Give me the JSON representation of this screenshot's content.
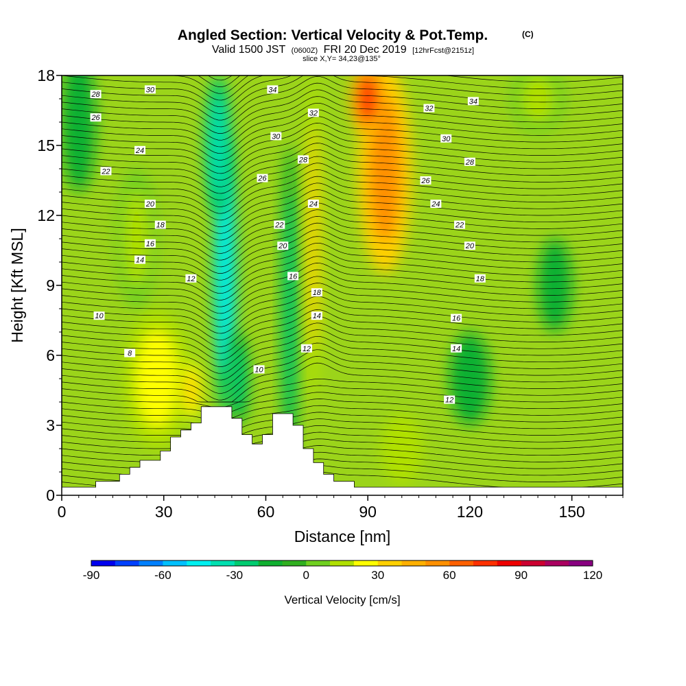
{
  "chart_data": {
    "type": "heatmap",
    "title": "Angled Section: Vertical Velocity & Pot.Temp.",
    "title_mark": "(C)",
    "subtitle_prefix": "Valid 1500 JST",
    "subtitle_z": "(0600Z)",
    "subtitle_main": "FRI 20 Dec 2019",
    "subtitle_fcst": "[12hrFcst@2151z]",
    "slice_label": "slice X,Y= 34,23@135°",
    "xlabel": "Distance [nm]",
    "ylabel": "Height [Kft MSL]",
    "xlim": [
      0,
      165
    ],
    "ylim": [
      0,
      18
    ],
    "x_ticks": [
      "0",
      "30",
      "60",
      "90",
      "120",
      "150"
    ],
    "y_ticks": [
      "0",
      "3",
      "6",
      "9",
      "12",
      "15",
      "18"
    ],
    "colorbar": {
      "title": "Vertical Velocity [cm/s]",
      "min": -90,
      "max": 120,
      "step": 10,
      "tick_labels": [
        "-90",
        "-60",
        "-30",
        "0",
        "30",
        "60",
        "90",
        "120"
      ],
      "colors": [
        "#0000ee",
        "#0040ff",
        "#0080ff",
        "#00c0ff",
        "#00f0f0",
        "#00e0b0",
        "#00cc70",
        "#10b030",
        "#30b020",
        "#70d020",
        "#b0e000",
        "#ffff00",
        "#ffd000",
        "#ffb000",
        "#ff9000",
        "#ff6000",
        "#ff3000",
        "#ee0000",
        "#cc0030",
        "#aa0060",
        "#880080"
      ]
    },
    "terrain_profile": [
      [
        0,
        0.35
      ],
      [
        10,
        0.35
      ],
      [
        10,
        0.6
      ],
      [
        17,
        0.6
      ],
      [
        17,
        0.9
      ],
      [
        20,
        0.9
      ],
      [
        20,
        1.2
      ],
      [
        23,
        1.2
      ],
      [
        23,
        1.5
      ],
      [
        29,
        1.5
      ],
      [
        29,
        1.9
      ],
      [
        32,
        1.9
      ],
      [
        32,
        2.5
      ],
      [
        35,
        2.5
      ],
      [
        35,
        2.8
      ],
      [
        38,
        2.8
      ],
      [
        38,
        3.1
      ],
      [
        41,
        3.1
      ],
      [
        41,
        3.8
      ],
      [
        50,
        3.8
      ],
      [
        50,
        3.3
      ],
      [
        53,
        3.3
      ],
      [
        53,
        2.6
      ],
      [
        56,
        2.6
      ],
      [
        56,
        2.2
      ],
      [
        59,
        2.2
      ],
      [
        59,
        2.6
      ],
      [
        62,
        2.6
      ],
      [
        62,
        3.5
      ],
      [
        68,
        3.5
      ],
      [
        68,
        3.0
      ],
      [
        71,
        3.0
      ],
      [
        71,
        2.0
      ],
      [
        74,
        2.0
      ],
      [
        74,
        1.4
      ],
      [
        77,
        1.4
      ],
      [
        77,
        0.9
      ],
      [
        80,
        0.9
      ],
      [
        80,
        0.6
      ],
      [
        86,
        0.6
      ],
      [
        86,
        0.35
      ],
      [
        165,
        0.35
      ]
    ],
    "velocity_features": [
      {
        "x": 48,
        "y": 9.5,
        "rx": 3.5,
        "ry": 6,
        "value": -50
      },
      {
        "x": 46,
        "y": 15,
        "rx": 4,
        "ry": 3,
        "value": -35
      },
      {
        "x": 52,
        "y": 5,
        "rx": 3,
        "ry": 2,
        "value": -30
      },
      {
        "x": 67,
        "y": 8,
        "rx": 2.5,
        "ry": 7,
        "value": -25
      },
      {
        "x": 74,
        "y": 11,
        "rx": 2.5,
        "ry": 7,
        "value": 30
      },
      {
        "x": 95,
        "y": 14,
        "rx": 8,
        "ry": 4.5,
        "value": 55
      },
      {
        "x": 90,
        "y": 17,
        "rx": 5,
        "ry": 1.5,
        "value": 70
      },
      {
        "x": 28,
        "y": 5,
        "rx": 10,
        "ry": 3,
        "value": 20
      },
      {
        "x": 38,
        "y": 4.5,
        "rx": 3,
        "ry": 1.2,
        "value": 35
      },
      {
        "x": 22,
        "y": 11,
        "rx": 6,
        "ry": 3,
        "value": 15
      },
      {
        "x": 145,
        "y": 9,
        "rx": 5,
        "ry": 2,
        "value": -20
      },
      {
        "x": 120,
        "y": 5,
        "rx": 6,
        "ry": 2,
        "value": -18
      },
      {
        "x": 100,
        "y": 2,
        "rx": 6,
        "ry": 1.5,
        "value": 18
      },
      {
        "x": 5,
        "y": 16,
        "rx": 5,
        "ry": 3,
        "value": -20
      },
      {
        "x": 140,
        "y": 17,
        "rx": 8,
        "ry": 1.5,
        "value": 15
      }
    ],
    "contour_labels": [
      {
        "text": "28",
        "x": 10,
        "y": 17.2
      },
      {
        "text": "26",
        "x": 10,
        "y": 16.2
      },
      {
        "text": "30",
        "x": 26,
        "y": 17.4
      },
      {
        "text": "24",
        "x": 23,
        "y": 14.8
      },
      {
        "text": "22",
        "x": 13,
        "y": 13.9
      },
      {
        "text": "20",
        "x": 26,
        "y": 12.5
      },
      {
        "text": "18",
        "x": 29,
        "y": 11.6
      },
      {
        "text": "16",
        "x": 26,
        "y": 10.8
      },
      {
        "text": "14",
        "x": 23,
        "y": 10.1
      },
      {
        "text": "12",
        "x": 38,
        "y": 9.3
      },
      {
        "text": "10",
        "x": 11,
        "y": 7.7
      },
      {
        "text": "8",
        "x": 20,
        "y": 6.1
      },
      {
        "text": "34",
        "x": 62,
        "y": 17.4
      },
      {
        "text": "32",
        "x": 74,
        "y": 16.4
      },
      {
        "text": "30",
        "x": 63,
        "y": 15.4
      },
      {
        "text": "28",
        "x": 71,
        "y": 14.4
      },
      {
        "text": "26",
        "x": 59,
        "y": 13.6
      },
      {
        "text": "24",
        "x": 74,
        "y": 12.5
      },
      {
        "text": "22",
        "x": 64,
        "y": 11.6
      },
      {
        "text": "20",
        "x": 65,
        "y": 10.7
      },
      {
        "text": "16",
        "x": 68,
        "y": 9.4
      },
      {
        "text": "18",
        "x": 75,
        "y": 8.7
      },
      {
        "text": "14",
        "x": 75,
        "y": 7.7
      },
      {
        "text": "12",
        "x": 72,
        "y": 6.3
      },
      {
        "text": "10",
        "x": 58,
        "y": 5.4
      },
      {
        "text": "32",
        "x": 108,
        "y": 16.6
      },
      {
        "text": "34",
        "x": 121,
        "y": 16.9
      },
      {
        "text": "30",
        "x": 113,
        "y": 15.3
      },
      {
        "text": "28",
        "x": 120,
        "y": 14.3
      },
      {
        "text": "26",
        "x": 107,
        "y": 13.5
      },
      {
        "text": "24",
        "x": 110,
        "y": 12.5
      },
      {
        "text": "22",
        "x": 117,
        "y": 11.6
      },
      {
        "text": "20",
        "x": 120,
        "y": 10.7
      },
      {
        "text": "18",
        "x": 123,
        "y": 9.3
      },
      {
        "text": "16",
        "x": 116,
        "y": 7.6
      },
      {
        "text": "14",
        "x": 116,
        "y": 6.3
      },
      {
        "text": "12",
        "x": 114,
        "y": 4.1
      }
    ]
  }
}
